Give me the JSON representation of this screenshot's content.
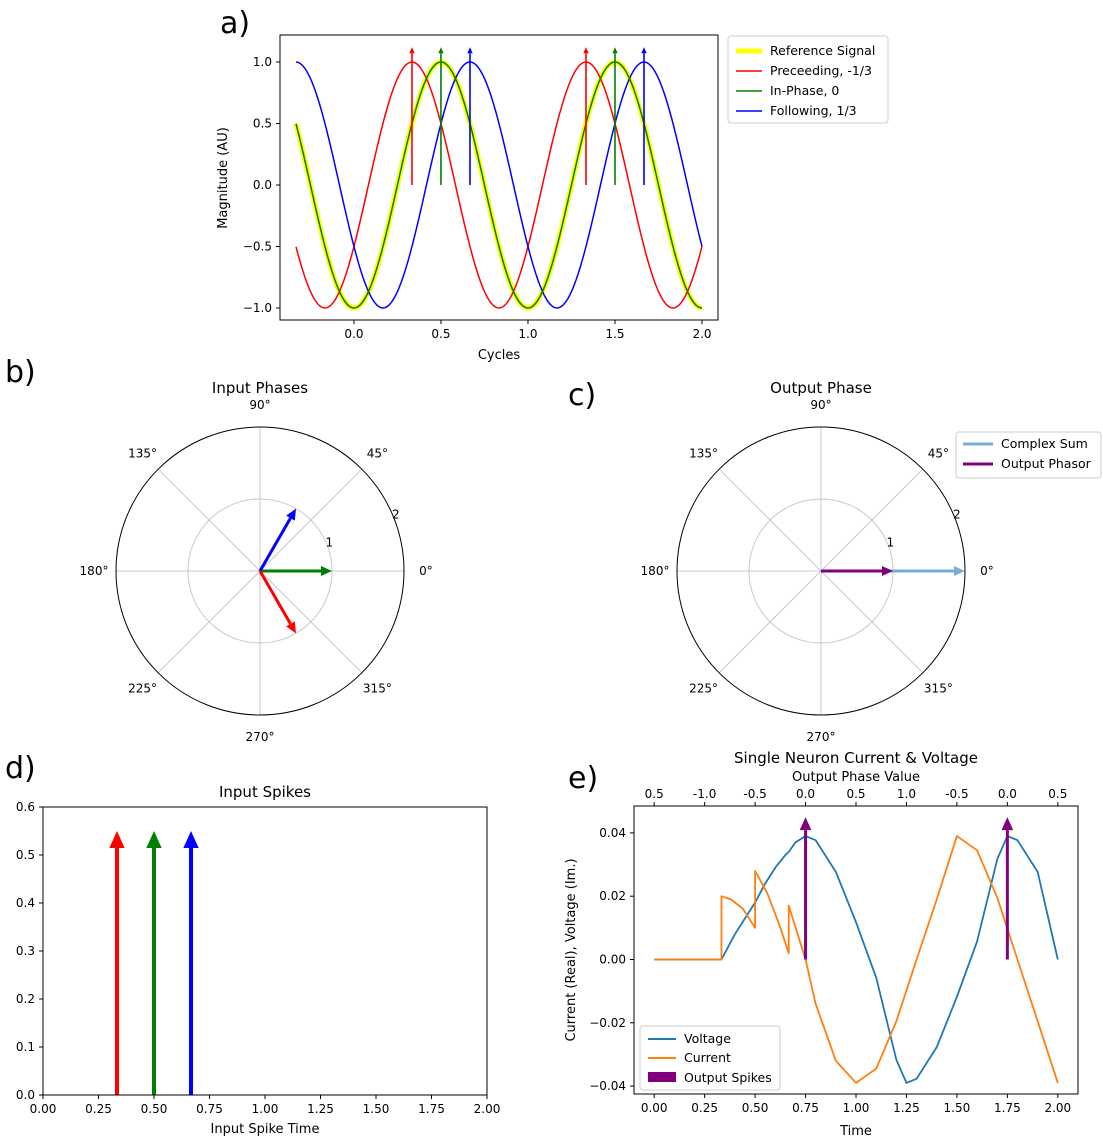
{
  "colors": {
    "reference": "#ffff00",
    "red": "#ff0000",
    "green": "#008000",
    "blue": "#0000ff",
    "voltage": "#1f77b4",
    "current": "#ff7f0e",
    "spikes": "#800080",
    "complex_sum": "#7aaed6"
  },
  "panel_letters": [
    "a)",
    "b)",
    "c)",
    "d)",
    "e)"
  ],
  "chart_data": [
    {
      "id": "a",
      "type": "line",
      "xlabel": "Cycles",
      "ylabel": "Magnitude (AU)",
      "xlim": [
        -0.333,
        2.0
      ],
      "ylim": [
        -1.1,
        1.1
      ],
      "xticks": [
        "0.0",
        "0.5",
        "1.0",
        "1.5",
        "2.0"
      ],
      "xtick_values": [
        0,
        0.5,
        1.0,
        1.5,
        2.0
      ],
      "yticks": [
        "1.0",
        "0.5",
        "0.0",
        "−0.5",
        "−1.0"
      ],
      "ytick_values": [
        1.0,
        0.5,
        0.0,
        -0.5,
        -1.0
      ],
      "legend_position": "outside-right",
      "series": [
        {
          "name": "Reference Signal",
          "phase_offset": 0.0,
          "color_key": "reference",
          "function": "cos(2π(x - 0.5))"
        },
        {
          "name": "Preceeding, -1/3",
          "phase_offset": -0.3333,
          "color_key": "red",
          "function": "cos(2π(x - 0.3333))"
        },
        {
          "name": "In-Phase, 0",
          "phase_offset": 0.0,
          "color_key": "green",
          "function": "cos(2π(x - 0.5))"
        },
        {
          "name": "Following, 1/3",
          "phase_offset": 0.3333,
          "color_key": "blue",
          "function": "cos(2π(x - 0.6667))"
        }
      ],
      "peak_arrows": [
        {
          "x": 0.3333,
          "color_key": "red"
        },
        {
          "x": 0.5,
          "color_key": "green"
        },
        {
          "x": 0.6667,
          "color_key": "blue"
        },
        {
          "x": 1.3333,
          "color_key": "red"
        },
        {
          "x": 1.5,
          "color_key": "green"
        },
        {
          "x": 1.6667,
          "color_key": "blue"
        }
      ]
    },
    {
      "id": "b",
      "type": "polar",
      "title": "Input Phases",
      "rmax": 2,
      "rticks": [
        "1",
        "2"
      ],
      "angle_labels": [
        "0°",
        "45°",
        "90°",
        "135°",
        "180°",
        "225°",
        "270°",
        "315°"
      ],
      "vectors": [
        {
          "angle_deg": 0,
          "r": 1.0,
          "color_key": "green"
        },
        {
          "angle_deg": 60,
          "r": 1.0,
          "color_key": "blue"
        },
        {
          "angle_deg": -60,
          "r": 1.0,
          "color_key": "red"
        }
      ]
    },
    {
      "id": "c",
      "type": "polar",
      "title": "Output Phase",
      "rmax": 2,
      "rticks": [
        "1",
        "2"
      ],
      "angle_labels": [
        "0°",
        "45°",
        "90°",
        "135°",
        "180°",
        "225°",
        "270°",
        "315°"
      ],
      "legend": [
        "Complex Sum",
        "Output Phasor"
      ],
      "vectors": [
        {
          "name": "Complex Sum",
          "angle_deg": 0,
          "r": 2.0,
          "color_key": "complex_sum"
        },
        {
          "name": "Output Phasor",
          "angle_deg": 0,
          "r": 1.0,
          "color_key": "spikes"
        }
      ]
    },
    {
      "id": "d",
      "type": "bar",
      "title": "Input Spikes",
      "xlabel": "Input Spike Time",
      "xlim": [
        0,
        2.0
      ],
      "ylim": [
        0,
        0.6
      ],
      "xticks": [
        "0.00",
        "0.25",
        "0.50",
        "0.75",
        "1.00",
        "1.25",
        "1.50",
        "1.75",
        "2.00"
      ],
      "xtick_values": [
        0,
        0.25,
        0.5,
        0.75,
        1.0,
        1.25,
        1.5,
        1.75,
        2.0
      ],
      "yticks": [
        "0.0",
        "0.1",
        "0.2",
        "0.3",
        "0.4",
        "0.5",
        "0.6"
      ],
      "ytick_values": [
        0,
        0.1,
        0.2,
        0.3,
        0.4,
        0.5,
        0.6
      ],
      "spikes": [
        {
          "x": 0.3333,
          "height": 0.55,
          "color_key": "red"
        },
        {
          "x": 0.5,
          "height": 0.55,
          "color_key": "green"
        },
        {
          "x": 0.6667,
          "height": 0.55,
          "color_key": "blue"
        }
      ]
    },
    {
      "id": "e",
      "type": "line",
      "title": "Single Neuron Current & Voltage",
      "top_xlabel": "Output Phase Value",
      "xlabel": "Time",
      "ylabel": "Current (Real), Voltage (Im.)",
      "xlim": [
        -0.1,
        2.1
      ],
      "ylim": [
        -0.0425,
        0.0485
      ],
      "xticks": [
        "0.00",
        "0.25",
        "0.50",
        "0.75",
        "1.00",
        "1.25",
        "1.50",
        "1.75",
        "2.00"
      ],
      "xtick_values": [
        0,
        0.25,
        0.5,
        0.75,
        1.0,
        1.25,
        1.5,
        1.75,
        2.0
      ],
      "top_xticks": [
        "0.5",
        "-1.0",
        "-0.5",
        "0.0",
        "0.5",
        "1.0",
        "-0.5",
        "0.0",
        "0.5"
      ],
      "top_xtick_values": [
        0,
        0.25,
        0.5,
        0.75,
        1.0,
        1.25,
        1.5,
        1.75,
        2.0
      ],
      "yticks": [
        "0.04",
        "0.02",
        "0.00",
        "−0.02",
        "−0.04"
      ],
      "ytick_values": [
        0.04,
        0.02,
        0.0,
        -0.02,
        -0.04
      ],
      "legend": [
        "Voltage",
        "Current",
        "Output Spikes"
      ],
      "legend_position": "lower-left",
      "series": [
        {
          "name": "Voltage",
          "color_key": "voltage",
          "x": [
            0,
            0.1,
            0.2,
            0.3333,
            0.4,
            0.5,
            0.55,
            0.6,
            0.65,
            0.6667,
            0.7,
            0.75,
            0.8,
            0.9,
            1.0,
            1.1,
            1.2,
            1.25,
            1.3,
            1.4,
            1.5,
            1.6,
            1.7,
            1.75,
            1.8,
            1.9,
            2.0
          ],
          "y": [
            0,
            0,
            0,
            0,
            0.008,
            0.018,
            0.024,
            0.029,
            0.033,
            0.034,
            0.037,
            0.039,
            0.0377,
            0.0277,
            0.0118,
            -0.0057,
            -0.0317,
            -0.039,
            -0.0377,
            -0.0277,
            -0.0118,
            0.0057,
            0.0317,
            0.039,
            0.0377,
            0.0277,
            0.0
          ]
        },
        {
          "name": "Current",
          "color_key": "current",
          "x": [
            0,
            0.1,
            0.2,
            0.3333,
            0.3334,
            0.38,
            0.44,
            0.5,
            0.5001,
            0.56,
            0.62,
            0.6667,
            0.6668,
            0.75,
            0.8,
            0.9,
            1.0,
            1.1,
            1.2,
            1.3,
            1.4,
            1.5,
            1.6,
            1.7,
            1.8,
            1.9,
            2.0
          ],
          "y": [
            0,
            0,
            0,
            0,
            0.02,
            0.019,
            0.016,
            0.01,
            0.028,
            0.021,
            0.011,
            0.002,
            0.017,
            0.0,
            -0.014,
            -0.032,
            -0.039,
            -0.0345,
            -0.0195,
            0.0,
            0.019,
            0.039,
            0.0345,
            0.0195,
            -0.0,
            -0.0195,
            -0.039
          ]
        }
      ],
      "output_spikes": [
        {
          "x": 0.75,
          "height": 0.045
        },
        {
          "x": 1.75,
          "height": 0.045
        }
      ]
    }
  ]
}
